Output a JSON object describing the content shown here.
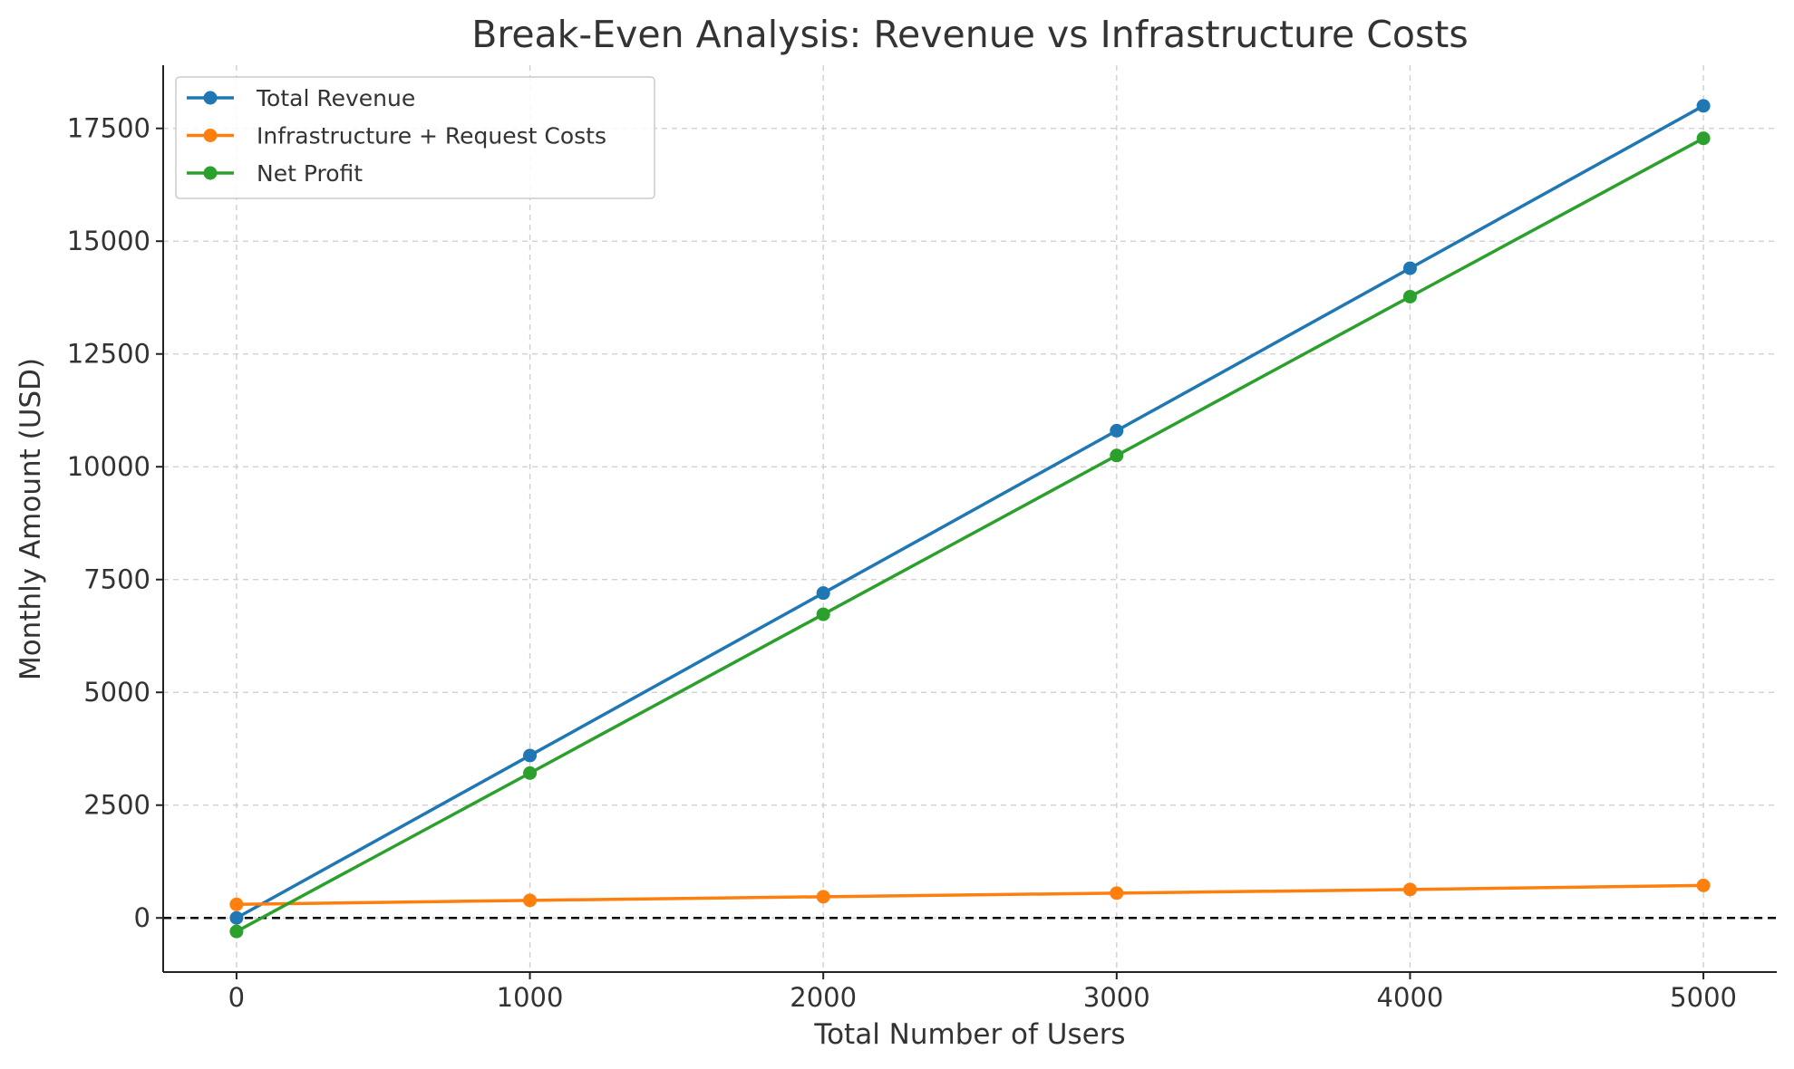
{
  "chart_data": {
    "type": "line",
    "title": "Break-Even Analysis: Revenue vs Infrastructure Costs",
    "xlabel": "Total Number of Users",
    "ylabel": "Monthly Amount (USD)",
    "x": [
      0,
      1000,
      2000,
      3000,
      4000,
      5000
    ],
    "x_ticks": [
      0,
      1000,
      2000,
      3000,
      4000,
      5000
    ],
    "y_ticks": [
      0,
      2500,
      5000,
      7500,
      10000,
      12500,
      15000,
      17500
    ],
    "xlim": [
      -250,
      5250
    ],
    "ylim": [
      -1200,
      18900
    ],
    "grid": true,
    "legend_position": "top-left",
    "reference_line": {
      "y": 0,
      "style": "dashed",
      "color": "#000000"
    },
    "series": [
      {
        "name": "Total Revenue",
        "color": "#1f77b4",
        "values": [
          0,
          3600,
          7200,
          10800,
          14400,
          18000
        ]
      },
      {
        "name": "Infrastructure + Request Costs",
        "color": "#ff7f0e",
        "values": [
          300,
          390,
          470,
          550,
          630,
          720
        ]
      },
      {
        "name": "Net Profit",
        "color": "#2ca02c",
        "values": [
          -300,
          3210,
          6730,
          10250,
          13770,
          17280
        ]
      }
    ]
  }
}
